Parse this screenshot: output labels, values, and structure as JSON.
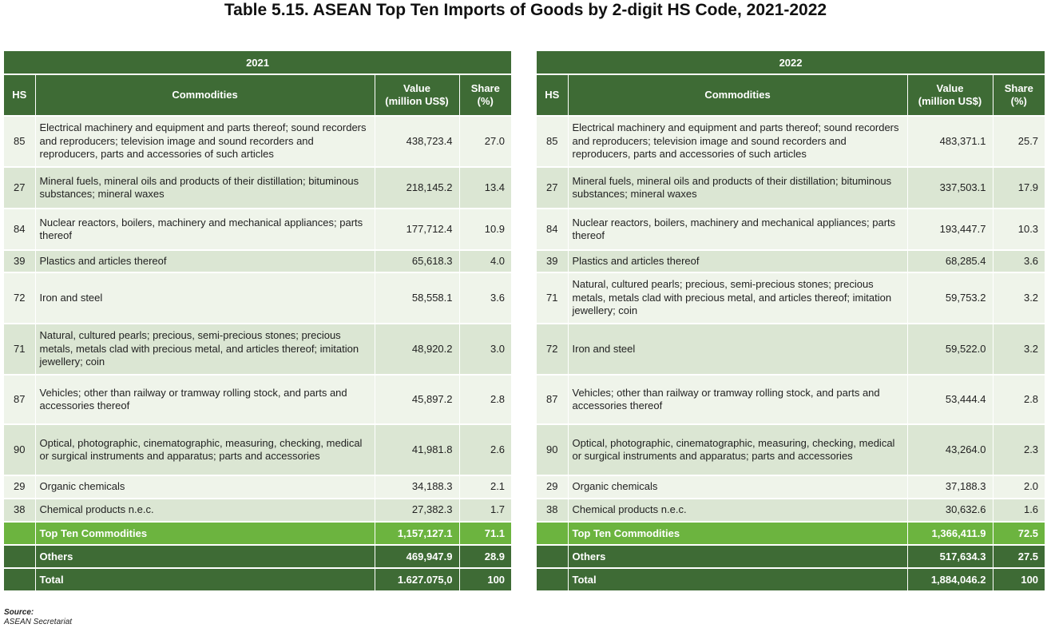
{
  "title": "Table 5.15. ASEAN Top Ten Imports of Goods by 2-digit HS Code, 2021-2022",
  "headers": {
    "hs": "HS",
    "commodities": "Commodities",
    "value_line1": "Value",
    "value_line2": "(million US$)",
    "share_line1": "Share",
    "share_line2": "(%)"
  },
  "tables": [
    {
      "year": "2021",
      "rows": [
        {
          "hs": "85",
          "commodity": "Electrical machinery and equipment and parts thereof; sound recorders and reproducers; television image and sound recorders and reproducers, parts and accessories of such articles",
          "value": "438,723.4",
          "share": "27.0"
        },
        {
          "hs": "27",
          "commodity": "Mineral fuels, mineral oils and products of their distillation; bituminous substances; mineral waxes",
          "value": "218,145.2",
          "share": "13.4"
        },
        {
          "hs": "84",
          "commodity": "Nuclear reactors, boilers, machinery and mechanical appliances; parts thereof",
          "value": "177,712.4",
          "share": "10.9"
        },
        {
          "hs": "39",
          "commodity": "Plastics and articles thereof",
          "value": "65,618.3",
          "share": "4.0"
        },
        {
          "hs": "72",
          "commodity": "Iron and steel",
          "value": "58,558.1",
          "share": "3.6"
        },
        {
          "hs": "71",
          "commodity": "Natural, cultured pearls; precious, semi-precious stones; precious metals, metals clad with precious metal, and articles thereof; imitation jewellery; coin",
          "value": "48,920.2",
          "share": "3.0"
        },
        {
          "hs": "87",
          "commodity": "Vehicles; other than railway or tramway rolling stock, and parts and accessories thereof",
          "value": "45,897.2",
          "share": "2.8"
        },
        {
          "hs": "90",
          "commodity": "Optical, photographic, cinematographic, measuring, checking, medical or surgical instruments and apparatus; parts and accessories",
          "value": "41,981.8",
          "share": "2.6"
        },
        {
          "hs": "29",
          "commodity": "Organic chemicals",
          "value": "34,188.3",
          "share": "2.1"
        },
        {
          "hs": "38",
          "commodity": "Chemical products n.e.c.",
          "value": "27,382.3",
          "share": "1.7"
        }
      ],
      "top_ten": {
        "label": "Top Ten Commodities",
        "value": "1,157,127.1",
        "share": "71.1"
      },
      "others": {
        "label": "Others",
        "value": "469,947.9",
        "share": "28.9"
      },
      "total": {
        "label": "Total",
        "value": "1.627.075,0",
        "share": "100"
      }
    },
    {
      "year": "2022",
      "rows": [
        {
          "hs": "85",
          "commodity": "Electrical machinery and equipment and parts thereof; sound recorders and reproducers; television image and sound recorders and reproducers, parts and accessories of such articles",
          "value": "483,371.1",
          "share": "25.7"
        },
        {
          "hs": "27",
          "commodity": "Mineral fuels, mineral oils and products of their distillation; bituminous substances; mineral waxes",
          "value": "337,503.1",
          "share": "17.9"
        },
        {
          "hs": "84",
          "commodity": "Nuclear reactors, boilers, machinery and mechanical appliances; parts thereof",
          "value": "193,447.7",
          "share": "10.3"
        },
        {
          "hs": "39",
          "commodity": "Plastics and articles thereof",
          "value": "68,285.4",
          "share": "3.6"
        },
        {
          "hs": "71",
          "commodity": "Natural, cultured pearls; precious, semi-precious stones; precious metals, metals clad with precious metal, and articles thereof; imitation jewellery; coin",
          "value": "59,753.2",
          "share": "3.2"
        },
        {
          "hs": "72",
          "commodity": "Iron and steel",
          "value": "59,522.0",
          "share": "3.2"
        },
        {
          "hs": "87",
          "commodity": "Vehicles; other than railway or tramway rolling stock, and parts and accessories thereof",
          "value": "53,444.4",
          "share": "2.8"
        },
        {
          "hs": "90",
          "commodity": "Optical, photographic, cinematographic, measuring, checking, medical or surgical instruments and apparatus; parts and accessories",
          "value": "43,264.0",
          "share": "2.3"
        },
        {
          "hs": "29",
          "commodity": "Organic chemicals",
          "value": "37,188.3",
          "share": "2.0"
        },
        {
          "hs": "38",
          "commodity": "Chemical products n.e.c.",
          "value": "30,632.6",
          "share": "1.6"
        }
      ],
      "top_ten": {
        "label": "Top Ten Commodities",
        "value": "1,366,411.9",
        "share": "72.5"
      },
      "others": {
        "label": "Others",
        "value": "517,634.3",
        "share": "27.5"
      },
      "total": {
        "label": "Total",
        "value": "1,884,046.2",
        "share": "100"
      }
    }
  ],
  "source": {
    "label": "Source:",
    "text": "ASEAN Secretariat"
  }
}
